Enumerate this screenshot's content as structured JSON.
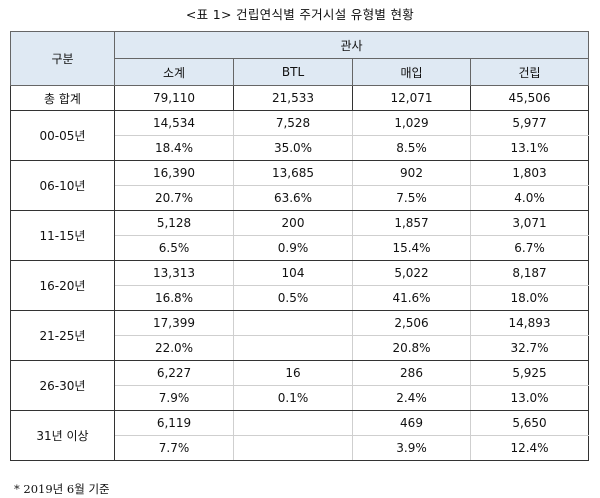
{
  "title": "<표 1> 건립연식별 주거시설 유형별 현황",
  "header": {
    "category": "구분",
    "group": "관사",
    "columns": [
      "소계",
      "BTL",
      "매입",
      "건립"
    ]
  },
  "total": {
    "label": "총 합계",
    "values": [
      "79,110",
      "21,533",
      "12,071",
      "45,506"
    ]
  },
  "rows": [
    {
      "label": "00-05년",
      "counts": [
        "14,534",
        "7,528",
        "1,029",
        "5,977"
      ],
      "pcts": [
        "18.4%",
        "35.0%",
        "8.5%",
        "13.1%"
      ]
    },
    {
      "label": "06-10년",
      "counts": [
        "16,390",
        "13,685",
        "902",
        "1,803"
      ],
      "pcts": [
        "20.7%",
        "63.6%",
        "7.5%",
        "4.0%"
      ]
    },
    {
      "label": "11-15년",
      "counts": [
        "5,128",
        "200",
        "1,857",
        "3,071"
      ],
      "pcts": [
        "6.5%",
        "0.9%",
        "15.4%",
        "6.7%"
      ]
    },
    {
      "label": "16-20년",
      "counts": [
        "13,313",
        "104",
        "5,022",
        "8,187"
      ],
      "pcts": [
        "16.8%",
        "0.5%",
        "41.6%",
        "18.0%"
      ]
    },
    {
      "label": "21-25년",
      "counts": [
        "17,399",
        "",
        "2,506",
        "14,893"
      ],
      "pcts": [
        "22.0%",
        "",
        "20.8%",
        "32.7%"
      ]
    },
    {
      "label": "26-30년",
      "counts": [
        "6,227",
        "16",
        "286",
        "5,925"
      ],
      "pcts": [
        "7.9%",
        "0.1%",
        "2.4%",
        "13.0%"
      ]
    },
    {
      "label": "31년 이상",
      "counts": [
        "6,119",
        "",
        "469",
        "5,650"
      ],
      "pcts": [
        "7.7%",
        "",
        "3.9%",
        "12.4%"
      ]
    }
  ],
  "note": "* 2019년 6월 기준"
}
